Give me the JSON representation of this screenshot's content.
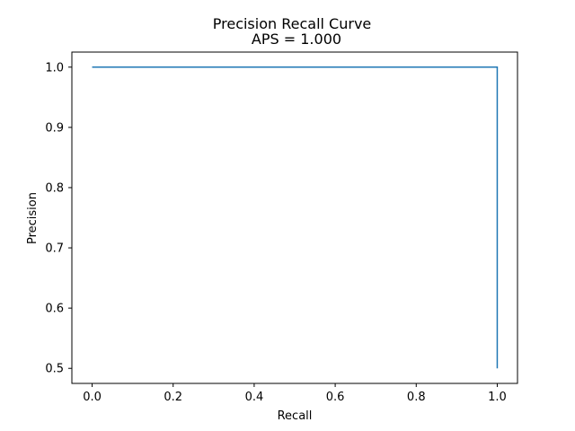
{
  "chart_data": {
    "type": "line",
    "title": "Precision Recall Curve",
    "subtitle": "APS = 1.000",
    "xlabel": "Recall",
    "ylabel": "Precision",
    "xlim": [
      -0.05,
      1.05
    ],
    "ylim": [
      0.475,
      1.025
    ],
    "x_ticks": [
      0.0,
      0.2,
      0.4,
      0.6,
      0.8,
      1.0
    ],
    "x_tick_labels": [
      "0.0",
      "0.2",
      "0.4",
      "0.6",
      "0.8",
      "1.0"
    ],
    "y_ticks": [
      0.5,
      0.6,
      0.7,
      0.8,
      0.9,
      1.0
    ],
    "y_tick_labels": [
      "0.5",
      "0.6",
      "0.7",
      "0.8",
      "0.9",
      "1.0"
    ],
    "grid": false,
    "series": [
      {
        "color": "#1f77b4",
        "x": [
          0.0,
          1.0,
          1.0
        ],
        "y": [
          1.0,
          1.0,
          0.5
        ]
      }
    ]
  }
}
